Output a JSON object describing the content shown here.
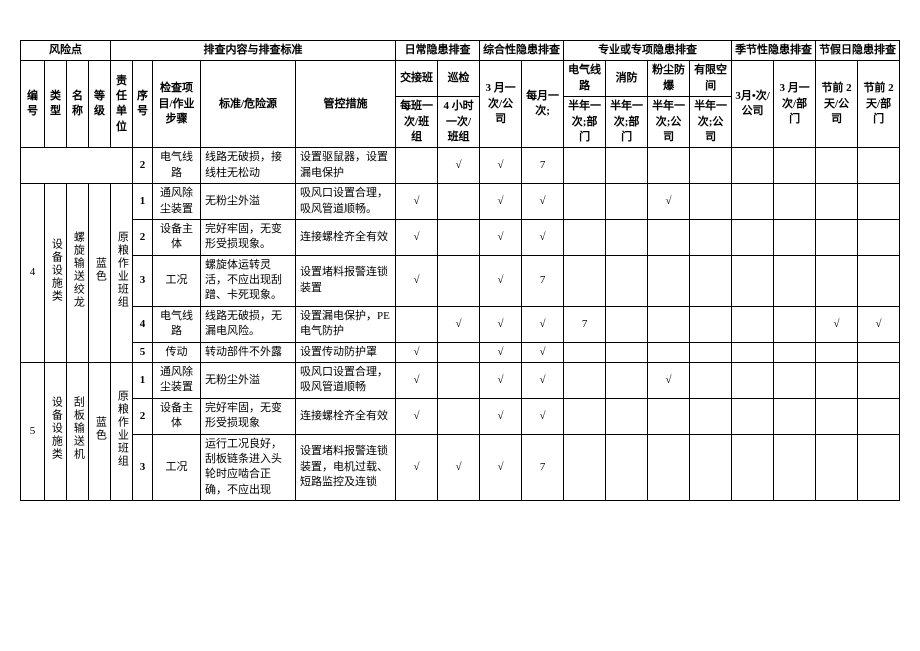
{
  "headers": {
    "risk_point": "风险点",
    "check_content": "排查内容与排查标准",
    "daily": "日常隐患排查",
    "comprehensive": "综合性隐患排查",
    "special": "专业或专项隐患排查",
    "seasonal": "季节性隐患排查",
    "holiday": "节假日隐患排查",
    "num": "编号",
    "type": "类型",
    "name": "名称",
    "level": "等级",
    "unit": "责任单位",
    "seq": "序号",
    "item": "检查项目/作业步骤",
    "std": "标准/危险源",
    "ctrl": "管控措施",
    "shift": "交接班",
    "patrol": "巡检",
    "shift_freq": "每班一次/班组",
    "patrol_freq": "4 小时一次/班组",
    "m3": "3 月一次/公司",
    "monthly": "每月一次;",
    "elec": "电气线路",
    "fire": "消防",
    "dust": "粉尘防爆",
    "conf": "有限空间",
    "half_dept": "半年一次;部门",
    "half_co": "半年一次;公司",
    "seasonal_c1": "3月•次/公司",
    "seasonal_c2": "3 月一次/部门",
    "holiday_c1": "节前 2 天/公司",
    "holiday_c2": "节前 2 天/部门"
  },
  "groups": [
    {
      "num": "4",
      "type": "设备设施类",
      "name": "螺旋输送绞龙",
      "level": "蓝色",
      "unit": "原粮作业班组",
      "pre_rows": [
        {
          "seq": "2",
          "item": "电气线路",
          "std": "线路无破损，接线柱无松动",
          "ctrl": "设置驱鼠器，设置漏电保护",
          "marks": [
            "",
            "√",
            "√",
            "7",
            "",
            "",
            "",
            "",
            "",
            "",
            "",
            ""
          ]
        }
      ],
      "rows": [
        {
          "seq": "1",
          "item": "通风除尘装置",
          "std": "无粉尘外溢",
          "ctrl": "吸风口设置合理，吸风管道顺畅。",
          "marks": [
            "√",
            "",
            "√",
            "√",
            "",
            "",
            "√",
            "",
            "",
            "",
            "",
            ""
          ]
        },
        {
          "seq": "2",
          "item": "设备主体",
          "std": "完好牢固，无变形受损现象。",
          "ctrl": "连接螺栓齐全有效",
          "marks": [
            "√",
            "",
            "√",
            "√",
            "",
            "",
            "",
            "",
            "",
            "",
            "",
            ""
          ]
        },
        {
          "seq": "3",
          "item": "工况",
          "std": "螺旋体运转灵活，不应出现刮蹭、卡死现象。",
          "ctrl": "设置堵料报警连锁装置",
          "marks": [
            "√",
            "",
            "√",
            "7",
            "",
            "",
            "",
            "",
            "",
            "",
            "",
            ""
          ]
        },
        {
          "seq": "4",
          "item": "电气线路",
          "std": "线路无破损，无漏电风险。",
          "ctrl": "设置漏电保护，PE 电气防护",
          "marks": [
            "",
            "√",
            "√",
            "√",
            "7",
            "",
            "",
            "",
            "",
            "",
            "√",
            "√"
          ]
        },
        {
          "seq": "5",
          "item": "传动",
          "std": "转动部件不外露",
          "ctrl": "设置传动防护罩",
          "marks": [
            "√",
            "",
            "√",
            "√",
            "",
            "",
            "",
            "",
            "",
            "",
            "",
            ""
          ]
        }
      ]
    },
    {
      "num": "5",
      "type": "设备设施类",
      "name": "刮板输送机",
      "level": "蓝色",
      "unit": "原粮作业班组",
      "rows": [
        {
          "seq": "1",
          "item": "通风除尘装置",
          "std": "无粉尘外溢",
          "ctrl": "吸风口设置合理，吸风管道顺畅",
          "marks": [
            "√",
            "",
            "√",
            "√",
            "",
            "",
            "√",
            "",
            "",
            "",
            "",
            ""
          ]
        },
        {
          "seq": "2",
          "item": "设备主体",
          "std": "完好牢固，无变形受损现象",
          "ctrl": "连接螺栓齐全有效",
          "marks": [
            "√",
            "",
            "√",
            "√",
            "",
            "",
            "",
            "",
            "",
            "",
            "",
            ""
          ]
        },
        {
          "seq": "3",
          "item": "工况",
          "std": "运行工况良好，刮板链条进入头轮时应啮合正确，不应出现",
          "ctrl": "设置堵料报警连锁装置，电机过载、短路监控及连锁",
          "marks": [
            "√",
            "√",
            "√",
            "7",
            "",
            "",
            "",
            "",
            "",
            "",
            "",
            ""
          ]
        }
      ]
    }
  ]
}
